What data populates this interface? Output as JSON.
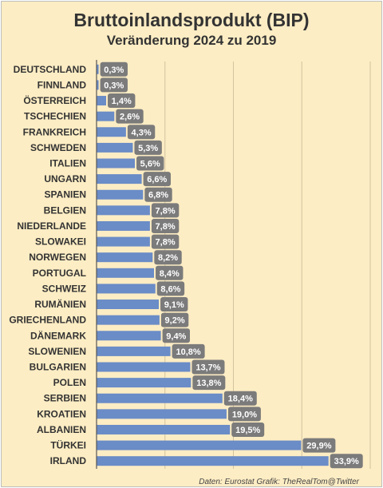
{
  "chart_data": {
    "type": "bar",
    "orientation": "horizontal",
    "title": "Bruttoinlandsprodukt (BIP)",
    "subtitle": "Veränderung 2024 zu 2019",
    "xlabel": "",
    "ylabel": "",
    "xlim": [
      0,
      40
    ],
    "grid": true,
    "value_format": "percent-comma-1",
    "categories": [
      "DEUTSCHLAND",
      "FINNLAND",
      "ÖSTERREICH",
      "TSCHECHIEN",
      "FRANKREICH",
      "SCHWEDEN",
      "ITALIEN",
      "UNGARN",
      "SPANIEN",
      "BELGIEN",
      "NIEDERLANDE",
      "SLOWAKEI",
      "NORWEGEN",
      "PORTUGAL",
      "SCHWEIZ",
      "RUMÄNIEN",
      "GRIECHENLAND",
      "DÄNEMARK",
      "SLOWENIEN",
      "BULGARIEN",
      "POLEN",
      "SERBIEN",
      "KROATIEN",
      "ALBANIEN",
      "TÜRKEI",
      "IRLAND"
    ],
    "values": [
      0.3,
      0.3,
      1.4,
      2.6,
      4.3,
      5.3,
      5.6,
      6.6,
      6.8,
      7.8,
      7.8,
      7.8,
      8.2,
      8.4,
      8.6,
      9.1,
      9.2,
      9.4,
      10.8,
      13.7,
      13.8,
      18.4,
      19.0,
      19.5,
      29.9,
      33.9
    ],
    "data_labels": [
      "0,3%",
      "0,3%",
      "1,4%",
      "2,6%",
      "4,3%",
      "5,3%",
      "5,6%",
      "6,6%",
      "6,8%",
      "7,8%",
      "7,8%",
      "7,8%",
      "8,2%",
      "8,4%",
      "8,6%",
      "9,1%",
      "9,2%",
      "9,4%",
      "10,8%",
      "13,7%",
      "13,8%",
      "18,4%",
      "19,0%",
      "19,5%",
      "29,9%",
      "33,9%"
    ],
    "colors": {
      "bar": "#6a8cc7",
      "label_box": "#7b7b7b",
      "label_text": "#ffffff",
      "background": "#fdedc4",
      "grid": "#d4c3a0",
      "axis": "#555555"
    }
  },
  "footer": "Daten: Eurostat  Grafik: TheRealTom@Twitter"
}
